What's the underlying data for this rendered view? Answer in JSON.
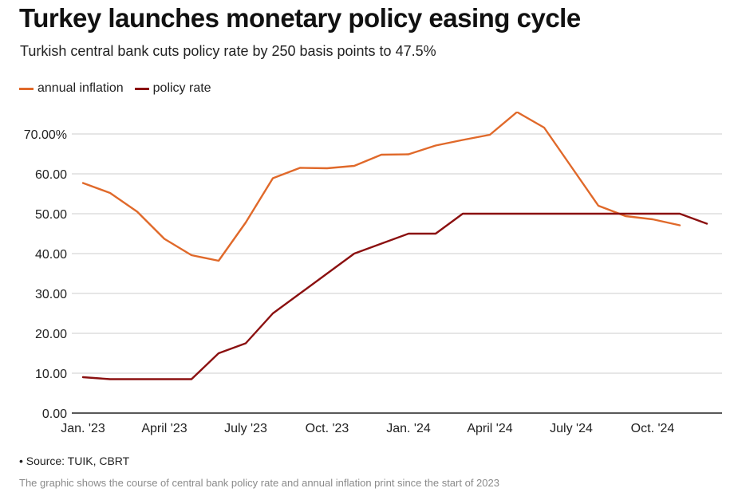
{
  "header": {
    "title": "Turkey launches monetary policy easing cycle",
    "subtitle": "Turkish central bank cuts policy rate by 250 basis points to 47.5%"
  },
  "footer": {
    "source": "• Source: TUIK, CBRT",
    "note": "The graphic shows the course of central bank policy rate and annual inflation print since the start of 2023"
  },
  "colors": {
    "inflation": "#e0692a",
    "policy": "#8b1010",
    "grid": "#cccccc",
    "axis": "#222222"
  },
  "chart_data": {
    "type": "line",
    "x": [
      "2023-01",
      "2023-02",
      "2023-03",
      "2023-04",
      "2023-05",
      "2023-06",
      "2023-07",
      "2023-08",
      "2023-09",
      "2023-10",
      "2023-11",
      "2023-12",
      "2024-01",
      "2024-02",
      "2024-03",
      "2024-04",
      "2024-05",
      "2024-06",
      "2024-07",
      "2024-08",
      "2024-09",
      "2024-10",
      "2024-11",
      "2024-12"
    ],
    "x_tick_labels": [
      "Jan. '23",
      "April '23",
      "July '23",
      "Oct. '23",
      "Jan. '24",
      "April '24",
      "July '24",
      "Oct. '24"
    ],
    "y_tick_labels": [
      "0.00",
      "10.00",
      "20.00",
      "30.00",
      "40.00",
      "50.00",
      "60.00",
      "70.00%"
    ],
    "ylim": [
      0,
      70
    ],
    "grid": true,
    "legend_position": "top-left",
    "series": [
      {
        "name": "annual inflation",
        "values": [
          57.7,
          55.2,
          50.5,
          43.7,
          39.6,
          38.2,
          47.8,
          58.9,
          61.5,
          61.4,
          62.0,
          64.8,
          64.9,
          67.1,
          68.5,
          69.8,
          75.5,
          71.6,
          61.8,
          52.0,
          49.4,
          48.6,
          47.1,
          null
        ]
      },
      {
        "name": "policy rate",
        "values": [
          9.0,
          8.5,
          8.5,
          8.5,
          8.5,
          15.0,
          17.5,
          25.0,
          30.0,
          35.0,
          40.0,
          42.5,
          45.0,
          45.0,
          50.0,
          50.0,
          50.0,
          50.0,
          50.0,
          50.0,
          50.0,
          50.0,
          50.0,
          47.5
        ]
      }
    ]
  }
}
